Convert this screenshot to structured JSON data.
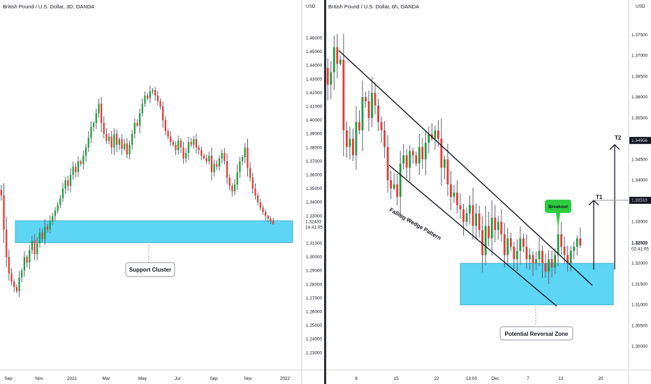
{
  "colors": {
    "up": "#26a69a",
    "up_body": "#1b9e3e",
    "down": "#e53935",
    "zone": "#5dd5f5",
    "zone_stroke": "#4ab2c9",
    "breakout": "#2ecc40",
    "line": "#131722"
  },
  "chart_data": [
    {
      "type": "candlestick",
      "title": "British Pound / U.S. Dollar, 3D, OANDA",
      "price_label": "USD",
      "xlabel": "",
      "ylabel": "",
      "ylim": [
        1.2225,
        1.4725
      ],
      "y_ticks": [
        "1.46000",
        "1.45000",
        "1.44000",
        "1.43000",
        "1.42000",
        "1.41000",
        "1.40000",
        "1.39000",
        "1.38000",
        "1.37000",
        "1.36000",
        "1.35000",
        "1.34000",
        "1.33000",
        "1.31000",
        "1.30000",
        "1.29000",
        "1.28000",
        "1.27000",
        "1.26000",
        "1.25000",
        "1.24000",
        "1.23000"
      ],
      "x_ticks": [
        "Sep",
        "Nov",
        "2021",
        "Mar",
        "May",
        "Jul",
        "Sep",
        "Nov",
        "2022"
      ],
      "last_price": "1.32433",
      "countdown": "14:41:05",
      "annotations": [
        "Support Cluster"
      ],
      "zones": [
        {
          "label": "Support Cluster",
          "low": 1.3105,
          "high": 1.3265
        }
      ],
      "series": [
        {
          "close_path": [
            1.345,
            1.32,
            1.3,
            1.288,
            1.282,
            1.278,
            1.275,
            1.285,
            1.29,
            1.3,
            1.296,
            1.305,
            1.312,
            1.302,
            1.31,
            1.318,
            1.313,
            1.322,
            1.32,
            1.326,
            1.33,
            1.334,
            1.338,
            1.343,
            1.35,
            1.356,
            1.352,
            1.36,
            1.366,
            1.362,
            1.37,
            1.368,
            1.374,
            1.38,
            1.387,
            1.395,
            1.398,
            1.405,
            1.412,
            1.398,
            1.39,
            1.385,
            1.388,
            1.38,
            1.39,
            1.382,
            1.386,
            1.379,
            1.383,
            1.375,
            1.382,
            1.39,
            1.398,
            1.396,
            1.405,
            1.412,
            1.418,
            1.416,
            1.421,
            1.422,
            1.418,
            1.414,
            1.41,
            1.4,
            1.392,
            1.388,
            1.384,
            1.382,
            1.378,
            1.385,
            1.38,
            1.372,
            1.376,
            1.384,
            1.382,
            1.386,
            1.38,
            1.378,
            1.374,
            1.372,
            1.37,
            1.374,
            1.362,
            1.368,
            1.366,
            1.372,
            1.376,
            1.37,
            1.358,
            1.352,
            1.348,
            1.353,
            1.362,
            1.37,
            1.373,
            1.38,
            1.365,
            1.358,
            1.35,
            1.345,
            1.34,
            1.336,
            1.333,
            1.33,
            1.328,
            1.326,
            1.3243
          ]
        }
      ]
    },
    {
      "type": "candlestick",
      "title": "British Pound / U.S. Dollar, 6h, OANDA",
      "price_label": "USD",
      "xlabel": "",
      "ylabel": "",
      "ylim": [
        1.296,
        1.38
      ],
      "y_ticks": [
        "1.37500",
        "1.37000",
        "1.36500",
        "1.36000",
        "1.35500",
        "1.35000",
        "1.34500",
        "1.34000",
        "1.33500",
        "1.33000",
        "1.32500",
        "1.32000",
        "1.31500",
        "1.31000",
        "1.30500",
        "1.30000"
      ],
      "x_ticks": [
        "8",
        "15",
        "22",
        "13:00",
        "Dec",
        "7",
        "13",
        "20"
      ],
      "last_price": "1.32433",
      "countdown": "02:41:05",
      "annotations": [
        "Falling Wedge Pattern",
        "Breakout",
        "Potential Reversal Zone",
        "T1",
        "T2"
      ],
      "zones": [
        {
          "label": "Potential Reversal Zone",
          "low": 1.31,
          "high": 1.32
        }
      ],
      "targets": [
        {
          "label": "T1",
          "price": "1.33516"
        },
        {
          "label": "T2",
          "price": "1.34956"
        }
      ],
      "series": [
        {
          "close_path": [
            1.363,
            1.366,
            1.372,
            1.368,
            1.369,
            1.352,
            1.348,
            1.35,
            1.346,
            1.354,
            1.352,
            1.36,
            1.359,
            1.355,
            1.361,
            1.358,
            1.354,
            1.352,
            1.348,
            1.34,
            1.338,
            1.339,
            1.336,
            1.344,
            1.346,
            1.343,
            1.347,
            1.346,
            1.344,
            1.348,
            1.345,
            1.349,
            1.351,
            1.35,
            1.352,
            1.35,
            1.343,
            1.345,
            1.339,
            1.336,
            1.337,
            1.334,
            1.333,
            1.33,
            1.332,
            1.334,
            1.329,
            1.332,
            1.328,
            1.322,
            1.329,
            1.326,
            1.331,
            1.328,
            1.33,
            1.327,
            1.322,
            1.326,
            1.324,
            1.321,
            1.323,
            1.326,
            1.324,
            1.321,
            1.322,
            1.32,
            1.321,
            1.323,
            1.32,
            1.318,
            1.321,
            1.319,
            1.322,
            1.327,
            1.324,
            1.322,
            1.32,
            1.323,
            1.324,
            1.326,
            1.3243
          ]
        }
      ]
    }
  ]
}
